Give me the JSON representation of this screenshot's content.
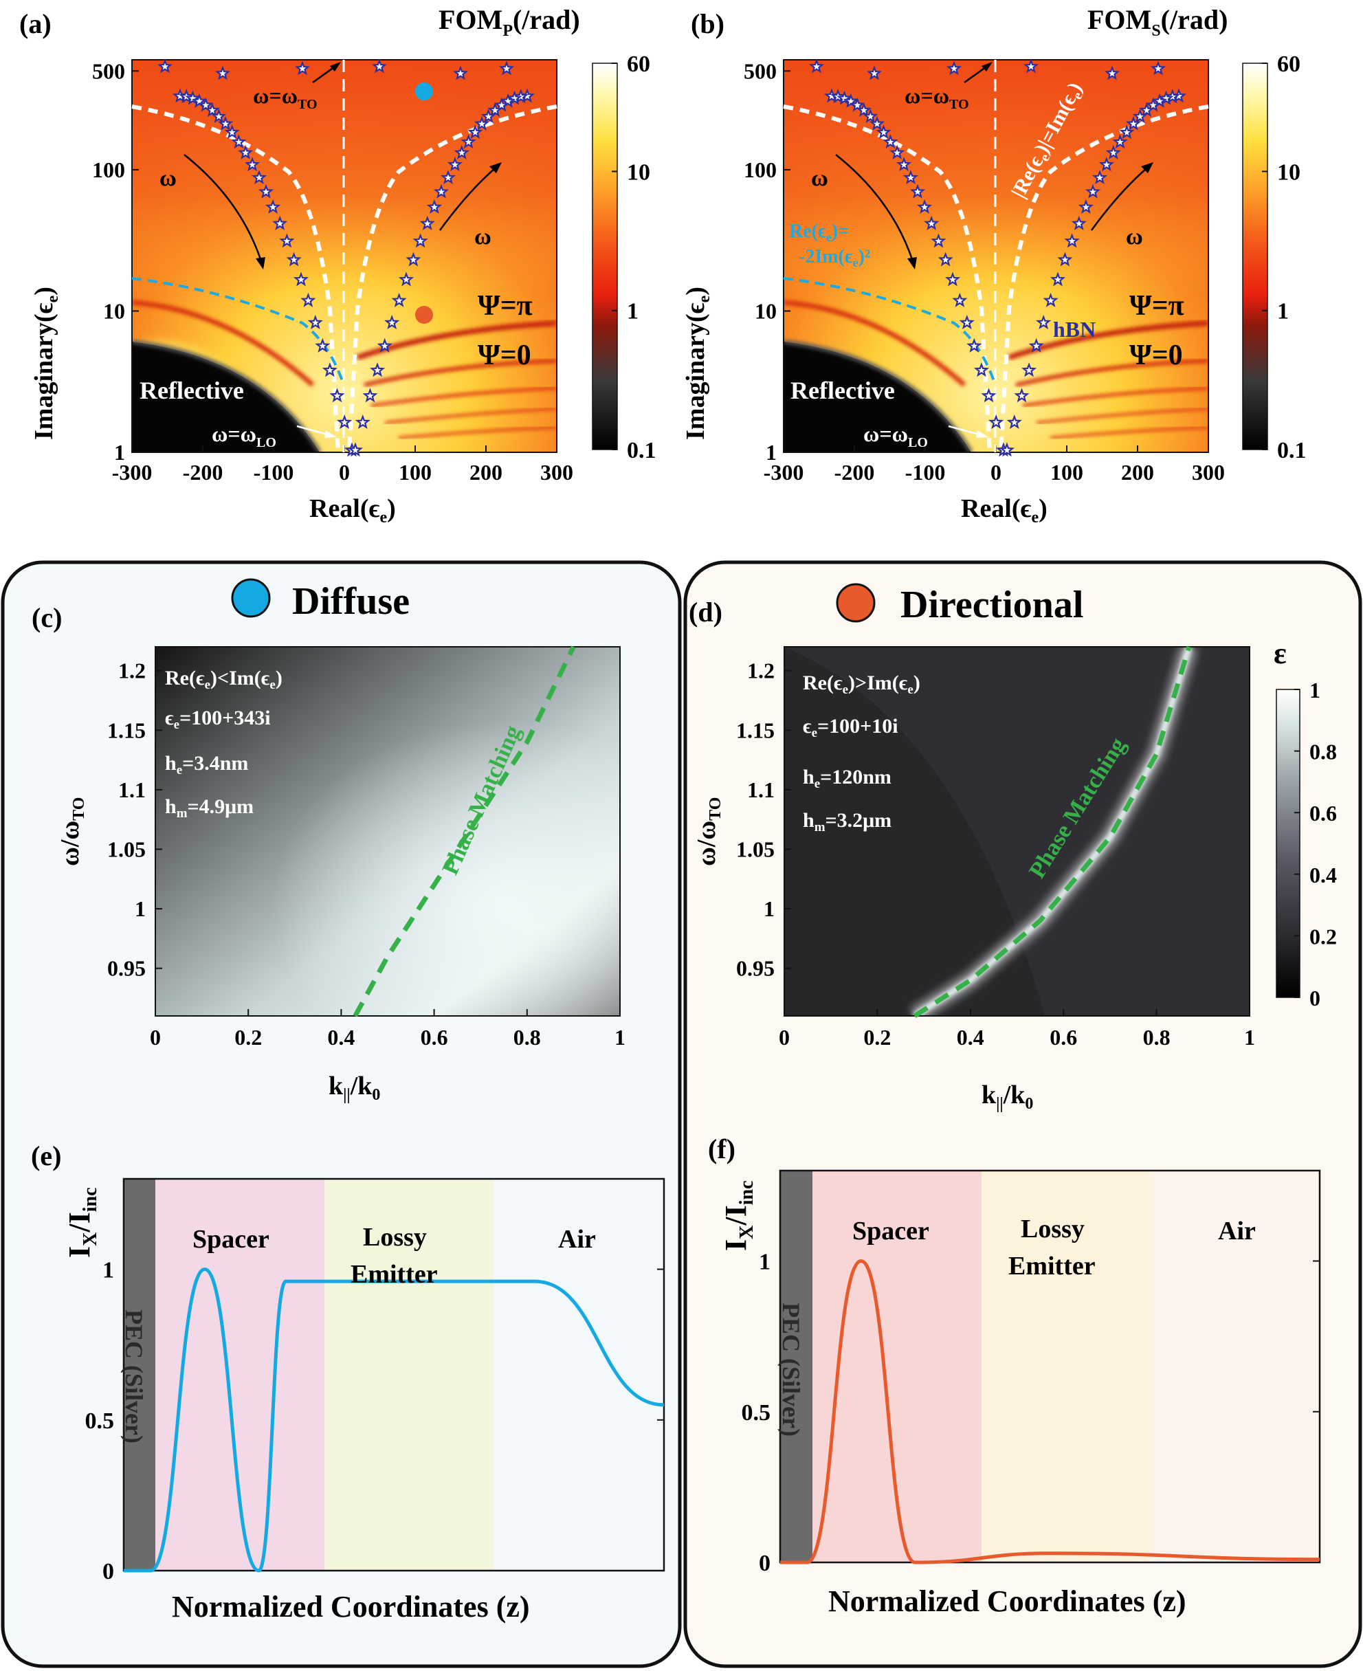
{
  "figure": {
    "colors": {
      "fom_colormap": [
        "#000000",
        "#3a3a3a",
        "#8b1a0c",
        "#e8200f",
        "#f5601a",
        "#ffa52a",
        "#ffe040",
        "#fff8b0",
        "#ffffff"
      ],
      "emissivity_colormap": [
        "#000000",
        "#2a2a30",
        "#5a5a66",
        "#9aa3a8",
        "#d6e2e2",
        "#ffffff"
      ],
      "star_color": "#2b2fa3",
      "white_dash": "#ffffff",
      "cyan_dash": "#1fa9e1",
      "green_dash": "#36b14a",
      "diffuse_marker": "#14a9e3",
      "directional_marker": "#e8592b",
      "diffuse_panel_bg": "#f4fafb",
      "directional_panel_bg": "#fdf8f1",
      "spacer_pink": "#f3d9e7",
      "spacer_rose": "#f8d6d6",
      "emitter_yellow": "#f3f5dd",
      "emitter_cream": "#fdf2dc",
      "air_diffuse": "#f3f8fa",
      "air_directional": "#fcf3ec",
      "pec_gray": "#6b6b6b"
    }
  },
  "chart_data": [
    {
      "panel": "(a)",
      "type": "heatmap",
      "title": "FOMP(/rad)",
      "title_main": "FOM",
      "title_sub": "P",
      "title_tail": "(/rad)",
      "xlabel": "Real(ϵe)",
      "ylabel": "Imaginary(ϵe)",
      "x_ticks": [
        "-300",
        "-200",
        "-100",
        "0",
        "100",
        "200",
        "300"
      ],
      "x_tick_values": [
        -300,
        -200,
        -100,
        0,
        100,
        200,
        300
      ],
      "xlim": [
        -300,
        300
      ],
      "y_scale": "log",
      "ylim": [
        1,
        600
      ],
      "y_ticks": [
        "1",
        "10",
        "100",
        "500"
      ],
      "y_tick_values": [
        1,
        10,
        100,
        500
      ],
      "colorbar": {
        "scale": "log",
        "range": [
          0.1,
          60
        ],
        "ticks": [
          "0.1",
          "1",
          "10",
          "60"
        ],
        "tick_values": [
          0.1,
          1,
          10,
          60
        ]
      },
      "annotations": {
        "reflective": "Reflective",
        "omega_to": "ω=ωTO",
        "omega_to_main": "ω=ω",
        "omega_to_sub": "TO",
        "omega_lo": "ω=ωLO",
        "omega_lo_main": "ω=ω",
        "omega_lo_sub": "LO",
        "omega_left": "ω",
        "omega_right": "ω",
        "psi_pi": "Ψ=π",
        "psi_zero": "Ψ=0"
      },
      "markers": [
        {
          "name": "diffuse-point",
          "x": 110,
          "y": 343
        },
        {
          "name": "directional-point",
          "x": 110,
          "y": 7
        }
      ]
    },
    {
      "panel": "(b)",
      "type": "heatmap",
      "title": "FOMS(/rad)",
      "title_main": "FOM",
      "title_sub": "S",
      "title_tail": "(/rad)",
      "xlabel": "Real(ϵe)",
      "ylabel": "Imaginary(ϵe)",
      "x_ticks": [
        "-300",
        "-200",
        "-100",
        "0",
        "100",
        "200",
        "300"
      ],
      "x_tick_values": [
        -300,
        -200,
        -100,
        0,
        100,
        200,
        300
      ],
      "xlim": [
        -300,
        300
      ],
      "y_scale": "log",
      "ylim": [
        1,
        600
      ],
      "y_ticks": [
        "1",
        "10",
        "100",
        "500"
      ],
      "y_tick_values": [
        1,
        10,
        100,
        500
      ],
      "colorbar": {
        "scale": "log",
        "range": [
          0.1,
          60
        ],
        "ticks": [
          "0.1",
          "1",
          "10",
          "60"
        ],
        "tick_values": [
          0.1,
          1,
          10,
          60
        ]
      },
      "annotations": {
        "reflective": "Reflective",
        "omega_to": "ω=ωTO",
        "omega_to_main": "ω=ω",
        "omega_to_sub": "TO",
        "omega_lo": "ω=ωLO",
        "omega_lo_main": "ω=ω",
        "omega_lo_sub": "LO",
        "omega_left": "ω",
        "omega_right": "ω",
        "psi_pi": "Ψ=π",
        "psi_zero": "Ψ=0",
        "re_eq_im": "|Re(ϵe)|=Im(ϵe)",
        "cyan_line_1": "Re(ϵe)=",
        "cyan_line_2": "-2Im(ϵe)²",
        "hbn": "hBN"
      }
    },
    {
      "panel": "(c)",
      "type": "heatmap",
      "header": "Diffuse",
      "xlabel": "k||/k0",
      "ylabel": "ω/ωTO",
      "xlim": [
        0,
        1
      ],
      "ylim": [
        0.91,
        1.22
      ],
      "x_ticks": [
        "0",
        "0.2",
        "0.4",
        "0.6",
        "0.8",
        "1"
      ],
      "x_tick_values": [
        0,
        0.2,
        0.4,
        0.6,
        0.8,
        1
      ],
      "y_ticks": [
        "0.95",
        "1",
        "1.05",
        "1.1",
        "1.15",
        "1.2"
      ],
      "y_tick_values": [
        0.95,
        1,
        1.05,
        1.1,
        1.15,
        1.2
      ],
      "curve_label": "Phase Matching",
      "phase_matching": {
        "x": [
          0.43,
          0.5,
          0.6,
          0.7,
          0.8,
          0.9
        ],
        "y": [
          0.91,
          0.96,
          1.02,
          1.08,
          1.14,
          1.22
        ]
      },
      "params": [
        "Re(ϵe)<Im(ϵe)",
        "ϵe=100+343i",
        "he=3.4nm",
        "hm=4.9μm"
      ]
    },
    {
      "panel": "(d)",
      "type": "heatmap",
      "header": "Directional",
      "xlabel": "k||/k0",
      "ylabel": "ω/ωTO",
      "xlim": [
        0,
        1
      ],
      "ylim": [
        0.91,
        1.22
      ],
      "x_ticks": [
        "0",
        "0.2",
        "0.4",
        "0.6",
        "0.8",
        "1"
      ],
      "x_tick_values": [
        0,
        0.2,
        0.4,
        0.6,
        0.8,
        1
      ],
      "y_ticks": [
        "0.95",
        "1",
        "1.05",
        "1.1",
        "1.15",
        "1.2"
      ],
      "y_tick_values": [
        0.95,
        1,
        1.05,
        1.1,
        1.15,
        1.2
      ],
      "curve_label": "Phase Matching",
      "phase_matching": {
        "x": [
          0.28,
          0.4,
          0.55,
          0.7,
          0.8,
          0.87
        ],
        "y": [
          0.91,
          0.94,
          0.99,
          1.06,
          1.13,
          1.22
        ]
      },
      "params": [
        "Re(ϵe)>Im(ϵe)",
        "ϵe=100+10i",
        "he=120nm",
        "hm=3.2μm"
      ],
      "colorbar": {
        "title": "ε",
        "range": [
          0,
          1
        ],
        "ticks": [
          "0",
          "0.2",
          "0.4",
          "0.6",
          "0.8",
          "1"
        ],
        "tick_values": [
          0,
          0.2,
          0.4,
          0.6,
          0.8,
          1
        ]
      }
    },
    {
      "panel": "(e)",
      "type": "line",
      "xlabel": "Normalized Coordinates (z)",
      "ylabel": "IX/Iinc",
      "ylim": [
        0,
        1.3
      ],
      "y_ticks": [
        "0",
        "0.5",
        "1"
      ],
      "y_tick_values": [
        0,
        0.5,
        1
      ],
      "regions": [
        "PEC (Silver)",
        "Spacer",
        "Lossy Emitter",
        "Air"
      ],
      "region_spacer": "Spacer",
      "region_emitter_1": "Lossy",
      "region_emitter_2": "Emitter",
      "region_air": "Air",
      "region_pec": "PEC (Silver)",
      "series": [
        {
          "name": "diffuse",
          "x": [
            0,
            0.05,
            0.15,
            0.25,
            0.3,
            0.37,
            0.55,
            0.76,
            1.0
          ],
          "values": [
            0,
            0,
            1,
            0,
            0.96,
            0.96,
            0.96,
            0.96,
            0.55
          ]
        }
      ]
    },
    {
      "panel": "(f)",
      "type": "line",
      "xlabel": "Normalized Coordinates (z)",
      "ylabel": "IX/Iinc",
      "ylim": [
        0,
        1.3
      ],
      "y_ticks": [
        "0",
        "0.5",
        "1"
      ],
      "y_tick_values": [
        0,
        0.5,
        1
      ],
      "regions": [
        "PEC (Silver)",
        "Spacer",
        "Lossy Emitter",
        "Air"
      ],
      "region_spacer": "Spacer",
      "region_emitter_1": "Lossy",
      "region_emitter_2": "Emitter",
      "region_air": "Air",
      "region_pec": "PEC (Silver)",
      "series": [
        {
          "name": "directional",
          "x": [
            0,
            0.05,
            0.15,
            0.25,
            0.5,
            1.0
          ],
          "values": [
            0,
            0,
            1,
            0,
            0.03,
            0.01
          ]
        }
      ]
    }
  ]
}
